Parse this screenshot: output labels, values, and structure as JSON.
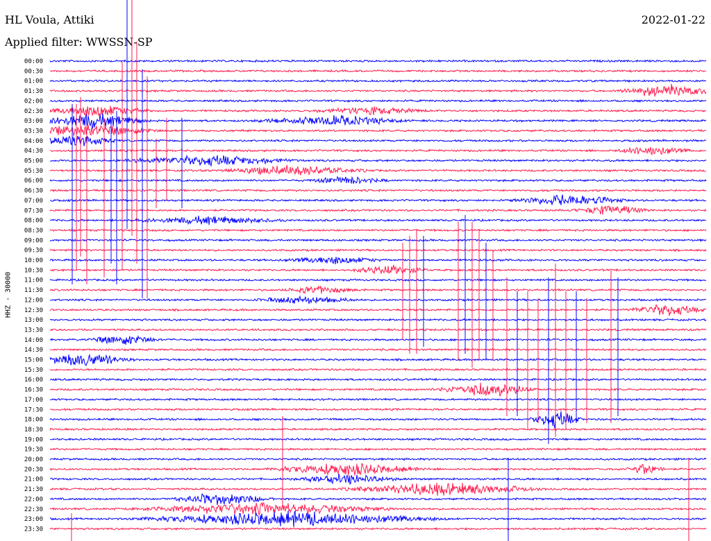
{
  "header": {
    "station": "HL Voula, Attiki",
    "date": "2022-01-22",
    "filter_label": "Applied filter: WWSSN-SP"
  },
  "channel_label": "HHZ - 30000",
  "colors": {
    "trace_a": "#0000ff",
    "trace_b": "#ff1a4d"
  },
  "chart_data": {
    "type": "seismogram-helicorder",
    "row_labels": [
      "00:00",
      "00:30",
      "01:00",
      "01:30",
      "02:00",
      "02:30",
      "03:00",
      "03:30",
      "04:00",
      "04:30",
      "05:00",
      "05:30",
      "06:00",
      "06:30",
      "07:00",
      "07:30",
      "08:00",
      "08:30",
      "09:00",
      "09:30",
      "10:00",
      "10:30",
      "11:00",
      "11:30",
      "12:00",
      "12:30",
      "13:00",
      "13:30",
      "14:00",
      "14:30",
      "15:00",
      "15:30",
      "16:00",
      "16:30",
      "17:00",
      "17:30",
      "18:00",
      "18:30",
      "19:00",
      "19:30",
      "20:00",
      "20:30",
      "21:00",
      "21:30",
      "22:00",
      "22:30",
      "23:00",
      "23:30"
    ],
    "trace_colors_cycle": [
      "blue",
      "red"
    ],
    "minutes_per_row": 30
  }
}
